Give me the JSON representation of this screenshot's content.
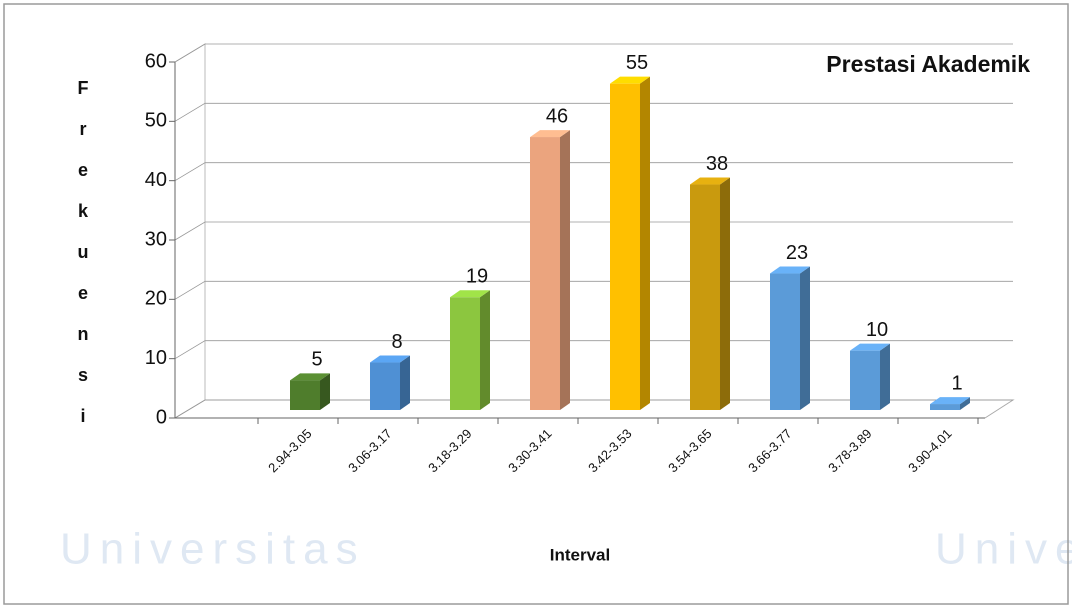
{
  "chart_data": {
    "type": "bar3d",
    "title": "Prestasi Akademik",
    "x_label": "Interval",
    "y_label": "Frekuensi",
    "watermark": "Universitas",
    "categories": [
      "2.94-3.05",
      "3.06-3.17",
      "3.18-3.29",
      "3.30-3.41",
      "3.42-3.53",
      "3.54-3.65",
      "3.66-3.77",
      "3.78-3.89",
      "3.90-4.01"
    ],
    "values": [
      5,
      8,
      19,
      46,
      55,
      38,
      23,
      10,
      1
    ],
    "colors": [
      "#4f7d2c",
      "#4f90d4",
      "#8cc63f",
      "#eba47e",
      "#ffc000",
      "#c99a0e",
      "#5b9bd8",
      "#5b9bd8",
      "#5b9bd8"
    ],
    "ylim": [
      0,
      60
    ],
    "yticks": [
      0,
      10,
      20,
      30,
      40,
      50,
      60
    ],
    "grid": true
  }
}
